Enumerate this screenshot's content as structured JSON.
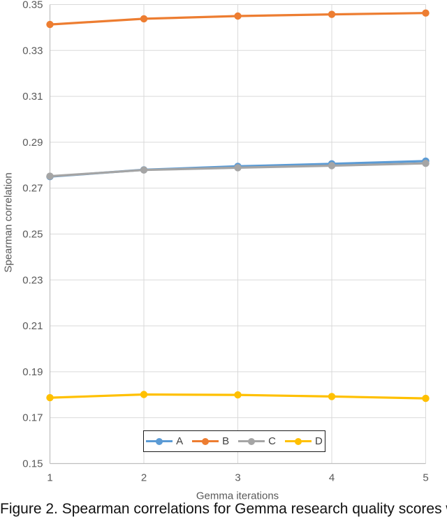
{
  "figure": {
    "caption": "Figure 2. Spearman correlations for Gemma research quality scores w"
  },
  "chart_data": {
    "type": "line",
    "title": "",
    "xlabel": "Gemma iterations",
    "ylabel": "Spearman correlation",
    "x": [
      1,
      2,
      3,
      4,
      5
    ],
    "xticks": [
      1,
      2,
      3,
      4,
      5
    ],
    "yticks": [
      0.35,
      0.33,
      0.31,
      0.29,
      0.27,
      0.25,
      0.23,
      0.21,
      0.19,
      0.17,
      0.15
    ],
    "ylim": [
      0.15,
      0.35
    ],
    "grid": true,
    "legend_position": "bottom-inside",
    "series": [
      {
        "name": "A",
        "color": "#5B9BD5",
        "values": [
          0.275,
          0.278,
          0.2795,
          0.2806,
          0.2818
        ]
      },
      {
        "name": "B",
        "color": "#ED7D31",
        "values": [
          0.3413,
          0.3438,
          0.345,
          0.3457,
          0.3463
        ]
      },
      {
        "name": "C",
        "color": "#A5A5A5",
        "values": [
          0.2752,
          0.2779,
          0.2789,
          0.2798,
          0.2808
        ]
      },
      {
        "name": "D",
        "color": "#FFC000",
        "values": [
          0.1787,
          0.1801,
          0.1799,
          0.1792,
          0.1784
        ]
      }
    ],
    "colors": {
      "grid": "#D9D9D9",
      "axis": "#BFBFBF",
      "tick_label": "#595959",
      "legend_text": "#404040"
    }
  }
}
